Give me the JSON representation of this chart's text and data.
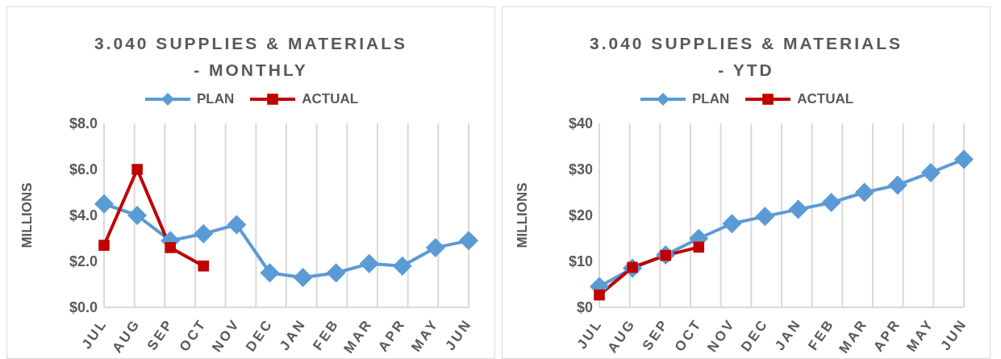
{
  "chart_data": [
    {
      "type": "line",
      "title": "3.040 SUPPLIES & MATERIALS - MONTHLY",
      "ylabel": "MILLIONS",
      "categories": [
        "JUL",
        "AUG",
        "SEP",
        "OCT",
        "NOV",
        "DEC",
        "JAN",
        "FEB",
        "MAR",
        "APR",
        "MAY",
        "JUN"
      ],
      "series": [
        {
          "name": "PLAN",
          "color": "#5b9bd5",
          "marker": "diamond",
          "values": [
            4.5,
            4.0,
            2.9,
            3.2,
            3.6,
            1.5,
            1.3,
            1.5,
            1.9,
            1.8,
            2.6,
            2.9
          ]
        },
        {
          "name": "ACTUAL",
          "color": "#c00000",
          "marker": "square",
          "values": [
            2.7,
            6.0,
            2.6,
            1.8,
            null,
            null,
            null,
            null,
            null,
            null,
            null,
            null
          ]
        }
      ],
      "ylim": [
        0,
        8
      ],
      "yticks": [
        {
          "value": 0,
          "label": "$0.0"
        },
        {
          "value": 2,
          "label": "$2.0"
        },
        {
          "value": 4,
          "label": "$4.0"
        },
        {
          "value": 6,
          "label": "$6.0"
        },
        {
          "value": 8,
          "label": "$8.0"
        }
      ],
      "grid": "x",
      "legend": "top"
    },
    {
      "type": "line",
      "title": "3.040 SUPPLIES & MATERIALS - YTD",
      "ylabel": "MILLIONS",
      "categories": [
        "JUL",
        "AUG",
        "SEP",
        "OCT",
        "NOV",
        "DEC",
        "JAN",
        "FEB",
        "MAR",
        "APR",
        "MAY",
        "JUN"
      ],
      "series": [
        {
          "name": "PLAN",
          "color": "#5b9bd5",
          "marker": "diamond",
          "values": [
            4.5,
            8.5,
            11.4,
            15.0,
            18.2,
            19.8,
            21.3,
            22.8,
            25.0,
            26.6,
            29.3,
            32.2
          ]
        },
        {
          "name": "ACTUAL",
          "color": "#c00000",
          "marker": "square",
          "values": [
            2.7,
            8.7,
            11.3,
            13.1,
            null,
            null,
            null,
            null,
            null,
            null,
            null,
            null
          ]
        }
      ],
      "ylim": [
        0,
        40
      ],
      "yticks": [
        {
          "value": 0,
          "label": "$0"
        },
        {
          "value": 10,
          "label": "$10"
        },
        {
          "value": 20,
          "label": "$20"
        },
        {
          "value": 30,
          "label": "$30"
        },
        {
          "value": 40,
          "label": "$40"
        }
      ],
      "grid": "x",
      "legend": "top"
    }
  ]
}
